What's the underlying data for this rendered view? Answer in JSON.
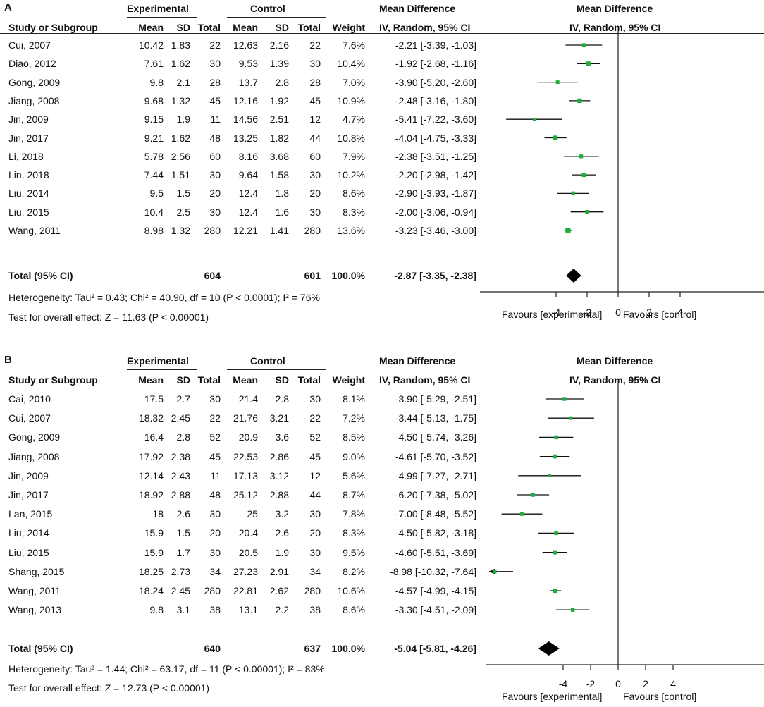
{
  "columns": {
    "group_experimental": "Experimental",
    "group_control": "Control",
    "group_md": "Mean Difference",
    "group_md_plot": "Mean Difference",
    "study": "Study or Subgroup",
    "mean": "Mean",
    "sd": "SD",
    "total": "Total",
    "weight": "Weight",
    "ci": "IV, Random, 95% CI",
    "ci_plot": "IV, Random, 95% CI"
  },
  "axis_labels": {
    "left": "Favours [experimental]",
    "right": "Favours [control]"
  },
  "chart_data": [
    {
      "type": "forest",
      "panel": "A",
      "xlim": [
        -10,
        10
      ],
      "xticks": [
        -4,
        -2,
        0,
        2,
        4
      ],
      "xlabel_left": "Favours [experimental]",
      "xlabel_right": "Favours [control]",
      "studies": [
        {
          "study": "Cui, 2007",
          "em": "10.42",
          "esd": "1.83",
          "en": "22",
          "cm": "12.63",
          "csd": "2.16",
          "cn": "22",
          "weight": "7.6%",
          "ci_text": "-2.21 [-3.39, -1.03]",
          "md": -2.21,
          "lo": -3.39,
          "hi": -1.03
        },
        {
          "study": "Diao, 2012",
          "em": "7.61",
          "esd": "1.62",
          "en": "30",
          "cm": "9.53",
          "csd": "1.39",
          "cn": "30",
          "weight": "10.4%",
          "ci_text": "-1.92 [-2.68, -1.16]",
          "md": -1.92,
          "lo": -2.68,
          "hi": -1.16
        },
        {
          "study": "Gong, 2009",
          "em": "9.8",
          "esd": "2.1",
          "en": "28",
          "cm": "13.7",
          "csd": "2.8",
          "cn": "28",
          "weight": "7.0%",
          "ci_text": "-3.90 [-5.20, -2.60]",
          "md": -3.9,
          "lo": -5.2,
          "hi": -2.6
        },
        {
          "study": "Jiang, 2008",
          "em": "9.68",
          "esd": "1.32",
          "en": "45",
          "cm": "12.16",
          "csd": "1.92",
          "cn": "45",
          "weight": "10.9%",
          "ci_text": "-2.48 [-3.16, -1.80]",
          "md": -2.48,
          "lo": -3.16,
          "hi": -1.8
        },
        {
          "study": "Jin, 2009",
          "em": "9.15",
          "esd": "1.9",
          "en": "11",
          "cm": "14.56",
          "csd": "2.51",
          "cn": "12",
          "weight": "4.7%",
          "ci_text": "-5.41 [-7.22, -3.60]",
          "md": -5.41,
          "lo": -7.22,
          "hi": -3.6
        },
        {
          "study": "Jin, 2017",
          "em": "9.21",
          "esd": "1.62",
          "en": "48",
          "cm": "13.25",
          "csd": "1.82",
          "cn": "44",
          "weight": "10.8%",
          "ci_text": "-4.04 [-4.75, -3.33]",
          "md": -4.04,
          "lo": -4.75,
          "hi": -3.33
        },
        {
          "study": "Li, 2018",
          "em": "5.78",
          "esd": "2.56",
          "en": "60",
          "cm": "8.16",
          "csd": "3.68",
          "cn": "60",
          "weight": "7.9%",
          "ci_text": "-2.38 [-3.51, -1.25]",
          "md": -2.38,
          "lo": -3.51,
          "hi": -1.25
        },
        {
          "study": "Lin, 2018",
          "em": "7.44",
          "esd": "1.51",
          "en": "30",
          "cm": "9.64",
          "csd": "1.58",
          "cn": "30",
          "weight": "10.2%",
          "ci_text": "-2.20 [-2.98, -1.42]",
          "md": -2.2,
          "lo": -2.98,
          "hi": -1.42
        },
        {
          "study": "Liu, 2014",
          "em": "9.5",
          "esd": "1.5",
          "en": "20",
          "cm": "12.4",
          "csd": "1.8",
          "cn": "20",
          "weight": "8.6%",
          "ci_text": "-2.90 [-3.93, -1.87]",
          "md": -2.9,
          "lo": -3.93,
          "hi": -1.87
        },
        {
          "study": "Liu, 2015",
          "em": "10.4",
          "esd": "2.5",
          "en": "30",
          "cm": "12.4",
          "csd": "1.6",
          "cn": "30",
          "weight": "8.3%",
          "ci_text": "-2.00 [-3.06, -0.94]",
          "md": -2.0,
          "lo": -3.06,
          "hi": -0.94
        },
        {
          "study": "Wang, 2011",
          "em": "8.98",
          "esd": "1.32",
          "en": "280",
          "cm": "12.21",
          "csd": "1.41",
          "cn": "280",
          "weight": "13.6%",
          "ci_text": "-3.23 [-3.46, -3.00]",
          "md": -3.23,
          "lo": -3.46,
          "hi": -3.0
        }
      ],
      "total": {
        "label": "Total (95% CI)",
        "en": "604",
        "cn": "601",
        "weight": "100.0%",
        "ci_text": "-2.87 [-3.35, -2.38]",
        "md": -2.87,
        "lo": -3.35,
        "hi": -2.38
      },
      "heterogeneity": "Heterogeneity: Tau² = 0.43; Chi² = 40.90, df = 10 (P < 0.0001); I² = 76%",
      "overall_effect": "Test for overall effect: Z = 11.63 (P < 0.00001)"
    },
    {
      "type": "forest",
      "panel": "B",
      "xlim": [
        -10,
        10
      ],
      "xticks": [
        -4,
        -2,
        0,
        2,
        4
      ],
      "xlabel_left": "Favours [experimental]",
      "xlabel_right": "Favours [control]",
      "studies": [
        {
          "study": "Cai, 2010",
          "em": "17.5",
          "esd": "2.7",
          "en": "30",
          "cm": "21.4",
          "csd": "2.8",
          "cn": "30",
          "weight": "8.1%",
          "ci_text": "-3.90 [-5.29, -2.51]",
          "md": -3.9,
          "lo": -5.29,
          "hi": -2.51
        },
        {
          "study": "Cui, 2007",
          "em": "18.32",
          "esd": "2.45",
          "en": "22",
          "cm": "21.76",
          "csd": "3.21",
          "cn": "22",
          "weight": "7.2%",
          "ci_text": "-3.44 [-5.13, -1.75]",
          "md": -3.44,
          "lo": -5.13,
          "hi": -1.75
        },
        {
          "study": "Gong, 2009",
          "em": "16.4",
          "esd": "2.8",
          "en": "52",
          "cm": "20.9",
          "csd": "3.6",
          "cn": "52",
          "weight": "8.5%",
          "ci_text": "-4.50 [-5.74, -3.26]",
          "md": -4.5,
          "lo": -5.74,
          "hi": -3.26
        },
        {
          "study": "Jiang, 2008",
          "em": "17.92",
          "esd": "2.38",
          "en": "45",
          "cm": "22.53",
          "csd": "2.86",
          "cn": "45",
          "weight": "9.0%",
          "ci_text": "-4.61 [-5.70, -3.52]",
          "md": -4.61,
          "lo": -5.7,
          "hi": -3.52
        },
        {
          "study": "Jin, 2009",
          "em": "12.14",
          "esd": "2.43",
          "en": "11",
          "cm": "17.13",
          "csd": "3.12",
          "cn": "12",
          "weight": "5.6%",
          "ci_text": "-4.99 [-7.27, -2.71]",
          "md": -4.99,
          "lo": -7.27,
          "hi": -2.71
        },
        {
          "study": "Jin, 2017",
          "em": "18.92",
          "esd": "2.88",
          "en": "48",
          "cm": "25.12",
          "csd": "2.88",
          "cn": "44",
          "weight": "8.7%",
          "ci_text": "-6.20 [-7.38, -5.02]",
          "md": -6.2,
          "lo": -7.38,
          "hi": -5.02
        },
        {
          "study": "Lan, 2015",
          "em": "18",
          "esd": "2.6",
          "en": "30",
          "cm": "25",
          "csd": "3.2",
          "cn": "30",
          "weight": "7.8%",
          "ci_text": "-7.00 [-8.48, -5.52]",
          "md": -7.0,
          "lo": -8.48,
          "hi": -5.52
        },
        {
          "study": "Liu, 2014",
          "em": "15.9",
          "esd": "1.5",
          "en": "20",
          "cm": "20.4",
          "csd": "2.6",
          "cn": "20",
          "weight": "8.3%",
          "ci_text": "-4.50 [-5.82, -3.18]",
          "md": -4.5,
          "lo": -5.82,
          "hi": -3.18
        },
        {
          "study": "Liu, 2015",
          "em": "15.9",
          "esd": "1.7",
          "en": "30",
          "cm": "20.5",
          "csd": "1.9",
          "cn": "30",
          "weight": "9.5%",
          "ci_text": "-4.60 [-5.51, -3.69]",
          "md": -4.6,
          "lo": -5.51,
          "hi": -3.69
        },
        {
          "study": "Shang, 2015",
          "em": "18.25",
          "esd": "2.73",
          "en": "34",
          "cm": "27.23",
          "csd": "2.91",
          "cn": "34",
          "weight": "8.2%",
          "ci_text": "-8.98 [-10.32, -7.64]",
          "md": -8.98,
          "lo": -10.32,
          "hi": -7.64
        },
        {
          "study": "Wang, 2011",
          "em": "18.24",
          "esd": "2.45",
          "en": "280",
          "cm": "22.81",
          "csd": "2.62",
          "cn": "280",
          "weight": "10.6%",
          "ci_text": "-4.57 [-4.99, -4.15]",
          "md": -4.57,
          "lo": -4.99,
          "hi": -4.15
        },
        {
          "study": "Wang, 2013",
          "em": "9.8",
          "esd": "3.1",
          "en": "38",
          "cm": "13.1",
          "csd": "2.2",
          "cn": "38",
          "weight": "8.6%",
          "ci_text": "-3.30 [-4.51, -2.09]",
          "md": -3.3,
          "lo": -4.51,
          "hi": -2.09
        }
      ],
      "total": {
        "label": "Total (95% CI)",
        "en": "640",
        "cn": "637",
        "weight": "100.0%",
        "ci_text": "-5.04 [-5.81, -4.26]",
        "md": -5.04,
        "lo": -5.81,
        "hi": -4.26
      },
      "heterogeneity": "Heterogeneity: Tau² = 1.44; Chi² = 63.17, df = 11 (P < 0.00001); I² = 83%",
      "overall_effect": "Test for overall effect: Z = 12.73 (P < 0.00001)"
    }
  ]
}
